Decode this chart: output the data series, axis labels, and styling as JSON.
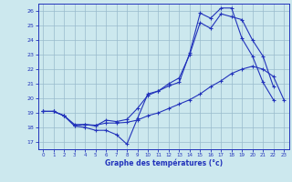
{
  "xlabel": "Graphe des températures (°c)",
  "background_color": "#cce8ee",
  "grid_color": "#99bbcc",
  "line_color": "#2233bb",
  "xlim": [
    -0.5,
    23.5
  ],
  "ylim": [
    16.5,
    26.5
  ],
  "yticks": [
    17,
    18,
    19,
    20,
    21,
    22,
    23,
    24,
    25,
    26
  ],
  "xticks": [
    0,
    1,
    2,
    3,
    4,
    5,
    6,
    7,
    8,
    9,
    10,
    11,
    12,
    13,
    14,
    15,
    16,
    17,
    18,
    19,
    20,
    21,
    22,
    23
  ],
  "line1_x": [
    0,
    1,
    2,
    3,
    4,
    5,
    6,
    7,
    8,
    9,
    10,
    11,
    12,
    13,
    14,
    15,
    16,
    17,
    18,
    19,
    20,
    21,
    22
  ],
  "line1_y": [
    19.1,
    19.1,
    18.8,
    18.1,
    18.0,
    17.8,
    17.8,
    17.5,
    16.85,
    18.6,
    20.3,
    20.5,
    20.85,
    21.1,
    23.1,
    25.85,
    25.5,
    26.2,
    26.2,
    24.1,
    22.9,
    21.1,
    19.9
  ],
  "line2_x": [
    0,
    1,
    2,
    3,
    4,
    5,
    6,
    7,
    8,
    9,
    10,
    11,
    12,
    13,
    14,
    15,
    16,
    17,
    18,
    19,
    20,
    21,
    22
  ],
  "line2_y": [
    19.1,
    19.1,
    18.8,
    18.2,
    18.2,
    18.1,
    18.5,
    18.4,
    18.55,
    19.3,
    20.2,
    20.5,
    21.0,
    21.4,
    23.0,
    25.2,
    24.8,
    25.8,
    25.6,
    25.4,
    24.0,
    22.9,
    20.8
  ],
  "line3_x": [
    0,
    1,
    2,
    3,
    4,
    5,
    6,
    7,
    8,
    9,
    10,
    11,
    12,
    13,
    14,
    15,
    16,
    17,
    18,
    19,
    20,
    21,
    22,
    23
  ],
  "line3_y": [
    19.1,
    19.1,
    18.8,
    18.1,
    18.2,
    18.15,
    18.3,
    18.3,
    18.35,
    18.5,
    18.8,
    19.0,
    19.3,
    19.6,
    19.9,
    20.3,
    20.8,
    21.2,
    21.7,
    22.0,
    22.2,
    22.0,
    21.5,
    19.9
  ]
}
